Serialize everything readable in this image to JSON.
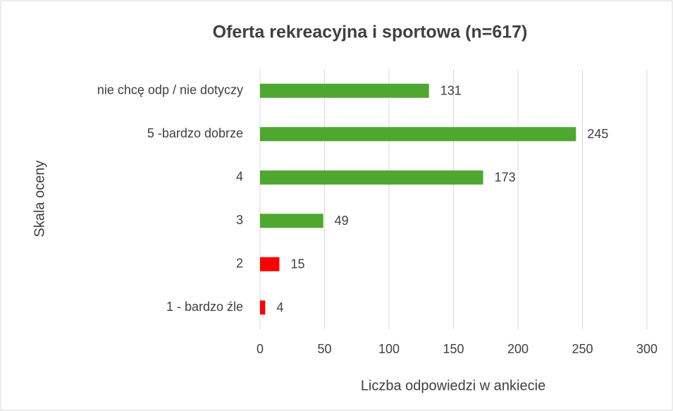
{
  "chart_data": {
    "type": "bar",
    "orientation": "horizontal",
    "title": "Oferta rekreacyjna i sportowa (n=617)",
    "x_label": "Liczba odpowiedzi w ankiecie",
    "y_label": "Skala oceny",
    "categories": [
      "nie chcę odp / nie dotyczy",
      "5 -bardzo dobrze",
      "4",
      "3",
      "2",
      "1 - bardzo źle"
    ],
    "values": [
      131,
      245,
      173,
      49,
      15,
      4
    ],
    "colors": [
      "#4ea72e",
      "#4ea72e",
      "#4ea72e",
      "#4ea72e",
      "#ff0000",
      "#ff0000"
    ],
    "xlim": [
      0,
      300
    ],
    "xticks": [
      0,
      50,
      100,
      150,
      200,
      250,
      300
    ],
    "grid": true
  }
}
